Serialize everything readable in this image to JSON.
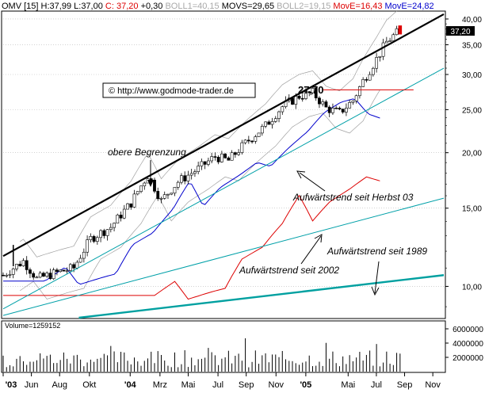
{
  "header": {
    "symbol": "OMV",
    "interval": "[15]",
    "high": "H:37,99",
    "low": "L:37,00",
    "close": "C: 37,20",
    "change": "+0,30",
    "boll1": "BOLL1=40,15",
    "movs": "MOVS=29,65",
    "boll2": "BOLL2=19,15",
    "move1": "MovE=16,43",
    "move2": "MovE=24,82",
    "colors": {
      "text": "#000000",
      "boll": "#c0c0c0",
      "move_red": "#dd0000",
      "move_blue": "#0000cc"
    }
  },
  "price_label": "37,20",
  "copyright": "© http://www.godmode-trader.de",
  "annotations": {
    "obere": "obere Begrenzung",
    "herbst": "Aufwärtstrend seit Herbst 03",
    "t1989": "Aufwärtstrend seit 1989",
    "t2002": "Aufwärtstrend seit 2002",
    "level": "27,70"
  },
  "volume_label": "Volume=1259152",
  "chart_data": {
    "type": "candlestick",
    "title": "",
    "y_scale": "log",
    "ylim": [
      8.5,
      41.5
    ],
    "y_ticks": [
      "40,00",
      "35,00",
      "30,00",
      "25,00",
      "20,00",
      "15,00",
      "10,00"
    ],
    "y_tick_values": [
      40,
      35,
      30,
      25,
      20,
      15,
      10
    ],
    "x_ticks": [
      "'03",
      "Jun",
      "Aug",
      "Okt",
      "'04",
      "Mrz",
      "Mai",
      "Jul",
      "Sep",
      "Nov",
      "'05",
      "Mai",
      "Jul",
      "Sep",
      "Nov"
    ],
    "volume_ticks": [
      "6000000",
      "4000000",
      "2000000"
    ],
    "volume_tick_values": [
      6000000,
      4000000,
      2000000
    ],
    "volume_ylim": [
      0,
      7000000
    ],
    "price_anchors": [
      [
        0,
        10.6
      ],
      [
        12,
        11.4
      ],
      [
        20,
        10.4
      ],
      [
        34,
        10.8
      ],
      [
        42,
        11.0
      ],
      [
        52,
        12.8
      ],
      [
        64,
        13.6
      ],
      [
        76,
        15.4
      ],
      [
        86,
        17.8
      ],
      [
        94,
        15.6
      ],
      [
        104,
        17.2
      ],
      [
        116,
        18.4
      ],
      [
        126,
        19.6
      ],
      [
        134,
        19.2
      ],
      [
        144,
        21.0
      ],
      [
        156,
        23.0
      ],
      [
        166,
        25.4
      ],
      [
        176,
        26.8
      ],
      [
        184,
        27.3
      ],
      [
        192,
        25.2
      ],
      [
        200,
        24.6
      ],
      [
        208,
        26.2
      ],
      [
        214,
        29.0
      ],
      [
        222,
        32.5
      ],
      [
        228,
        35.5
      ],
      [
        234,
        37.2
      ]
    ],
    "trendlines": [
      {
        "name": "obere Begrenzung",
        "color": "#000000",
        "from": [
          0,
          11.7
        ],
        "to": [
          262,
          41.0
        ]
      },
      {
        "name": "Aufwärtstrend seit Herbst 03",
        "color": "#00a0a8",
        "from": [
          0,
          8.9
        ],
        "to": [
          262,
          31.0
        ]
      },
      {
        "name": "Aufwärtstrend seit 2002",
        "color": "#00a0a8",
        "from": [
          0,
          8.6
        ],
        "to": [
          262,
          15.8
        ]
      },
      {
        "name": "Aufwärtstrend seit 1989",
        "color": "#00a0a0",
        "from": [
          45,
          8.5
        ],
        "to": [
          262,
          10.6
        ]
      }
    ],
    "resistance": {
      "value": 27.7,
      "color": "#dd0000",
      "from": 190,
      "to": 244
    }
  }
}
